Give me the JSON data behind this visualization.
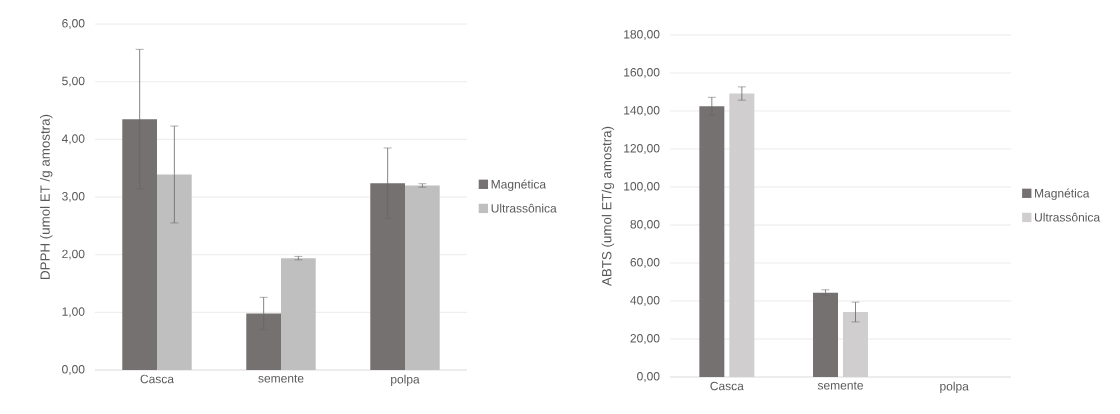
{
  "chart_data": [
    {
      "type": "bar",
      "ylabel": "DPPH (umol ET /g amostra)",
      "categories": [
        "Casca",
        "semente",
        "polpa"
      ],
      "series": [
        {
          "name": "Magnética",
          "color": "#767171",
          "values": [
            4.35,
            0.98,
            3.24
          ],
          "errors": [
            1.21,
            0.28,
            0.61
          ]
        },
        {
          "name": "Ultrassônica",
          "color": "#bfbfbf",
          "values": [
            3.39,
            1.94,
            3.2
          ],
          "errors": [
            0.84,
            0.03,
            0.03
          ]
        }
      ],
      "ylim": [
        0,
        6
      ],
      "yticks": [
        {
          "value": 0,
          "label": "0,00"
        },
        {
          "value": 1,
          "label": "1,00"
        },
        {
          "value": 2,
          "label": "2,00"
        },
        {
          "value": 3,
          "label": "3,00"
        },
        {
          "value": 4,
          "label": "4,00"
        },
        {
          "value": 5,
          "label": "5,00"
        },
        {
          "value": 6,
          "label": "6,00"
        }
      ],
      "grid": "y",
      "legend": "right"
    },
    {
      "type": "bar",
      "ylabel": "ABTS (umol ET/g amostra)",
      "categories": [
        "Casca",
        "semente",
        "polpa"
      ],
      "series": [
        {
          "name": "Magnética",
          "color": "#767171",
          "values": [
            142.5,
            44.4,
            null
          ],
          "errors": [
            4.7,
            1.5,
            null
          ]
        },
        {
          "name": "Ultrassônica",
          "color": "#d0cece",
          "values": [
            149.2,
            34.2,
            null
          ],
          "errors": [
            3.5,
            5.2,
            null
          ]
        }
      ],
      "ylim": [
        0,
        180
      ],
      "yticks": [
        {
          "value": 0,
          "label": "0,00"
        },
        {
          "value": 20,
          "label": "20,00"
        },
        {
          "value": 40,
          "label": "40,00"
        },
        {
          "value": 60,
          "label": "60,00"
        },
        {
          "value": 80,
          "label": "80,00"
        },
        {
          "value": 100,
          "label": "100,00"
        },
        {
          "value": 120,
          "label": "120,00"
        },
        {
          "value": 140,
          "label": "140,00"
        },
        {
          "value": 160,
          "label": "160,00"
        },
        {
          "value": 180,
          "label": "180,00"
        }
      ],
      "grid": "y",
      "legend": "right"
    }
  ]
}
